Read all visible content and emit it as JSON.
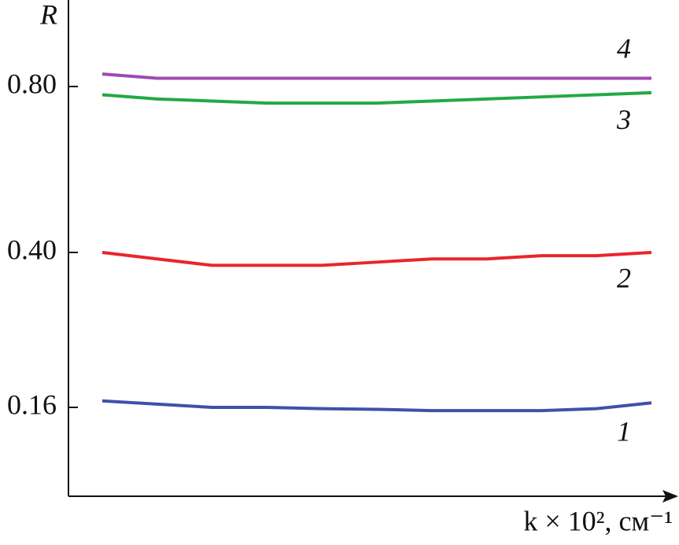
{
  "chart_data": {
    "type": "line",
    "y_label": "R",
    "x_label": "k × 10², см⁻¹",
    "x": [
      0,
      1,
      2,
      3,
      4,
      5,
      6,
      7,
      8,
      9,
      10
    ],
    "xlim": [
      -0.6,
      11
    ],
    "ylim": [
      0.02,
      1.0
    ],
    "yticks": [
      {
        "value": 0.16,
        "label": "0.16"
      },
      {
        "value": 0.4,
        "label": "0.40"
      },
      {
        "value": 0.8,
        "label": "0.80"
      }
    ],
    "series": [
      {
        "name": "1",
        "color": "#3f51a8",
        "values": [
          0.17,
          0.165,
          0.16,
          0.16,
          0.158,
          0.157,
          0.155,
          0.155,
          0.155,
          0.158,
          0.167
        ]
      },
      {
        "name": "2",
        "color": "#e8262b",
        "values": [
          0.4,
          0.39,
          0.38,
          0.38,
          0.38,
          0.385,
          0.39,
          0.39,
          0.395,
          0.395,
          0.4
        ]
      },
      {
        "name": "3",
        "color": "#22aa44",
        "values": [
          0.78,
          0.77,
          0.765,
          0.76,
          0.76,
          0.76,
          0.765,
          0.77,
          0.775,
          0.78,
          0.785
        ]
      },
      {
        "name": "4",
        "color": "#a04ab0",
        "values": [
          0.83,
          0.82,
          0.82,
          0.82,
          0.82,
          0.82,
          0.82,
          0.82,
          0.82,
          0.82,
          0.82
        ]
      }
    ]
  }
}
